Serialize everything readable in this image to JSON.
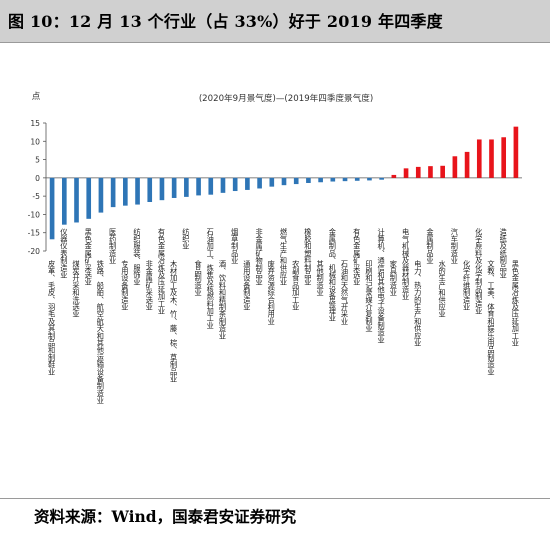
{
  "header": {
    "title": "图 10：12 月 13 个行业（占 33%）好于 2019 年四季度"
  },
  "footer": {
    "source": "资料来源：Wind，国泰君安证券研究"
  },
  "colors": {
    "negative": "#2e75b6",
    "positive": "#e8141b",
    "header_bg": "#d0d0d0"
  },
  "chart_data": {
    "type": "bar",
    "title": "(2020年9月景气度)—(2019年四季度景气度)",
    "ylabel": "点",
    "ylim": [
      -20,
      15
    ],
    "yticks": [
      -20,
      -15,
      -10,
      -5,
      0,
      5,
      10,
      15
    ],
    "grid": false,
    "legend": "none",
    "categories": [
      "皮革、毛皮、羽毛及其制品和制鞋业",
      "仪器仪表制造业",
      "煤炭开采和洗选业",
      "黑色金属矿采选业",
      "铁路、船舶、航空航天和其他运输设备制造业",
      "医药制造业",
      "专用设备制造业",
      "纺织服装、服饰业",
      "非金属矿采选业",
      "有色金属冶炼及压延加工业",
      "木材加工及木、竹、藤、棕、草制品业",
      "纺织业",
      "食品制造业",
      "石油加工、炼焦及核燃料加工业",
      "酒、饮料和精制茶制造业",
      "烟草制品业",
      "通用设备制造业",
      "非金属矿物制品业",
      "废弃资源综合利用业",
      "燃气生产和供应业",
      "农副食品加工业",
      "橡胶和塑料制品业",
      "其他制造业",
      "金属制品、机械和设备修理业",
      "石油和天然气开采业",
      "有色金属矿采选业",
      "印刷和记录媒介复制业",
      "计算机、通信和其他电子设备制造业",
      "家具制造业",
      "电气机械及器材制造业",
      "电力、热力的生产和供应业",
      "金属制品业",
      "水的生产和供应业",
      "汽车制造业",
      "化学纤维制造业",
      "化学原料及化学制品制造业",
      "文教、工美、体育和娱乐用品制造业",
      "造纸及纸制品业",
      "黑色金属冶炼及压延加工业"
    ],
    "values": [
      -16.8,
      -12.8,
      -12.2,
      -11.2,
      -9.5,
      -8.0,
      -7.6,
      -7.3,
      -6.6,
      -6.1,
      -5.5,
      -5.2,
      -4.8,
      -4.6,
      -4.1,
      -3.6,
      -3.3,
      -2.9,
      -2.4,
      -2.0,
      -1.7,
      -1.4,
      -1.2,
      -1.0,
      -0.9,
      -0.8,
      -0.7,
      -0.5,
      0.8,
      2.6,
      3.0,
      3.2,
      3.3,
      5.9,
      7.1,
      10.5,
      10.5,
      11.1,
      14.0
    ]
  }
}
